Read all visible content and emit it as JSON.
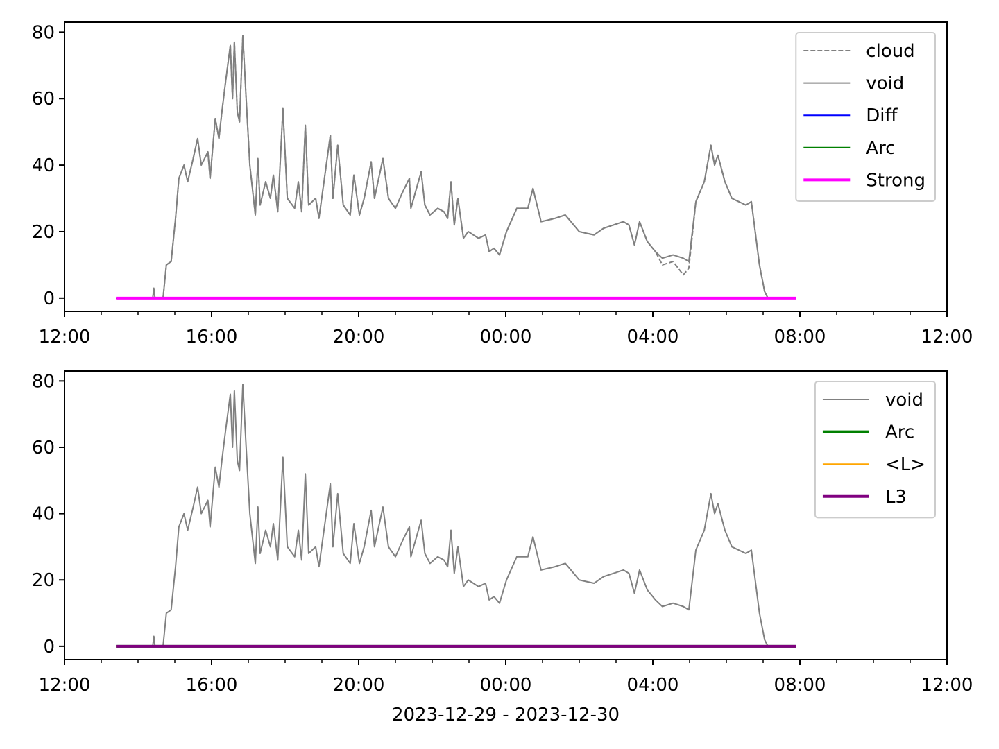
{
  "chart_data": [
    {
      "type": "line",
      "xlim": [
        12,
        36
      ],
      "ylim": [
        -4,
        83
      ],
      "xticks": [
        {
          "value": 12,
          "label": "12:00"
        },
        {
          "value": 16,
          "label": "16:00"
        },
        {
          "value": 20,
          "label": "20:00"
        },
        {
          "value": 24,
          "label": "00:00"
        },
        {
          "value": 28,
          "label": "04:00"
        },
        {
          "value": 32,
          "label": "08:00"
        },
        {
          "value": 36,
          "label": "12:00"
        }
      ],
      "xminorticks": [
        13,
        14,
        15,
        17,
        18,
        19,
        21,
        22,
        23,
        25,
        26,
        27,
        29,
        30,
        31,
        33,
        34,
        35
      ],
      "yticks": [
        0,
        20,
        40,
        60,
        80
      ],
      "legend": "upper right",
      "series": [
        {
          "name": "cloud",
          "color": "#808080",
          "linestyle": "dashed",
          "linewidth": 2,
          "x": [
            13.4,
            14.4,
            14.43,
            14.46,
            14.68,
            14.77,
            14.9,
            15.02,
            15.11,
            15.25,
            15.35,
            15.5,
            15.62,
            15.72,
            15.9,
            15.96,
            16.1,
            16.2,
            16.28,
            16.38,
            16.51,
            16.57,
            16.62,
            16.7,
            16.76,
            16.85,
            16.94,
            17.04,
            17.19,
            17.26,
            17.32,
            17.47,
            17.6,
            17.68,
            17.8,
            17.94,
            18.06,
            18.26,
            18.36,
            18.45,
            18.55,
            18.64,
            18.83,
            18.92,
            19.23,
            19.3,
            19.43,
            19.58,
            19.77,
            19.87,
            20.02,
            20.15,
            20.34,
            20.43,
            20.66,
            20.81,
            21.0,
            21.2,
            21.38,
            21.42,
            21.7,
            21.8,
            21.94,
            22.15,
            22.32,
            22.42,
            22.51,
            22.6,
            22.7,
            22.85,
            22.98,
            23.26,
            23.45,
            23.55,
            23.68,
            23.83,
            24.02,
            24.3,
            24.6,
            24.74,
            24.96,
            25.34,
            25.62,
            26.0,
            26.4,
            26.66,
            27.2,
            27.35,
            27.5,
            27.64,
            27.85,
            28.07,
            28.26,
            28.55,
            28.83,
            28.98,
            29.17,
            29.4,
            29.58,
            29.68,
            29.77,
            29.96,
            30.15,
            30.53,
            30.68,
            30.9,
            31.04,
            31.13
          ],
          "values": [
            0,
            0,
            3,
            0,
            0,
            10,
            11,
            24,
            36,
            40,
            35,
            42,
            48,
            40,
            44,
            36,
            54,
            48,
            56,
            65,
            76,
            60,
            77,
            56,
            53,
            79,
            60,
            40,
            25,
            42,
            28,
            35,
            30,
            37,
            26,
            57,
            30,
            27,
            35,
            26,
            52,
            28,
            30,
            24,
            49,
            30,
            46,
            28,
            25,
            37,
            25,
            30,
            41,
            30,
            42,
            30,
            27,
            32,
            36,
            27,
            38,
            28,
            25,
            27,
            26,
            24,
            35,
            22,
            30,
            18,
            20,
            18,
            19,
            14,
            15,
            13,
            20,
            27,
            27,
            33,
            23,
            24,
            25,
            20,
            19,
            21,
            23,
            22,
            16,
            23,
            17,
            14,
            10,
            11,
            7,
            9,
            29,
            35,
            46,
            40,
            43,
            35,
            30,
            28,
            29,
            10,
            2,
            0
          ]
        },
        {
          "name": "void",
          "color": "#808080",
          "linestyle": "solid",
          "linewidth": 2,
          "x": [
            13.4,
            14.4,
            14.43,
            14.46,
            14.68,
            14.77,
            14.9,
            15.02,
            15.11,
            15.25,
            15.35,
            15.5,
            15.62,
            15.72,
            15.9,
            15.96,
            16.1,
            16.2,
            16.28,
            16.38,
            16.51,
            16.57,
            16.62,
            16.7,
            16.76,
            16.85,
            16.94,
            17.04,
            17.19,
            17.26,
            17.32,
            17.47,
            17.6,
            17.68,
            17.8,
            17.94,
            18.06,
            18.26,
            18.36,
            18.45,
            18.55,
            18.64,
            18.83,
            18.92,
            19.23,
            19.3,
            19.43,
            19.58,
            19.77,
            19.87,
            20.02,
            20.15,
            20.34,
            20.43,
            20.66,
            20.81,
            21.0,
            21.2,
            21.38,
            21.42,
            21.7,
            21.8,
            21.94,
            22.15,
            22.32,
            22.42,
            22.51,
            22.6,
            22.7,
            22.85,
            22.98,
            23.26,
            23.45,
            23.55,
            23.68,
            23.83,
            24.02,
            24.3,
            24.6,
            24.74,
            24.96,
            25.34,
            25.62,
            26.0,
            26.4,
            26.66,
            27.2,
            27.35,
            27.5,
            27.64,
            27.85,
            28.07,
            28.26,
            28.55,
            28.83,
            28.98,
            29.17,
            29.4,
            29.58,
            29.68,
            29.77,
            29.96,
            30.15,
            30.53,
            30.68,
            30.9,
            31.04,
            31.13
          ],
          "values": [
            0,
            0,
            3,
            0,
            0,
            10,
            11,
            24,
            36,
            40,
            35,
            42,
            48,
            40,
            44,
            36,
            54,
            48,
            56,
            65,
            76,
            60,
            77,
            56,
            53,
            79,
            60,
            40,
            25,
            42,
            28,
            35,
            30,
            37,
            26,
            57,
            30,
            27,
            35,
            26,
            52,
            28,
            30,
            24,
            49,
            30,
            46,
            28,
            25,
            37,
            25,
            30,
            41,
            30,
            42,
            30,
            27,
            32,
            36,
            27,
            38,
            28,
            25,
            27,
            26,
            24,
            35,
            22,
            30,
            18,
            20,
            18,
            19,
            14,
            15,
            13,
            20,
            27,
            27,
            33,
            23,
            24,
            25,
            20,
            19,
            21,
            23,
            22,
            16,
            23,
            17,
            14,
            12,
            13,
            12,
            11,
            29,
            35,
            46,
            40,
            43,
            35,
            30,
            28,
            29,
            10,
            2,
            0
          ]
        },
        {
          "name": "Diff",
          "color": "#0000ff",
          "linestyle": "solid",
          "linewidth": 2,
          "x": [
            13.4,
            31.9
          ],
          "values": [
            0,
            0
          ]
        },
        {
          "name": "Arc",
          "color": "#008000",
          "linestyle": "solid",
          "linewidth": 2,
          "x": [
            13.4,
            31.9
          ],
          "values": [
            0,
            0
          ]
        },
        {
          "name": "Strong",
          "color": "#ff00ff",
          "linestyle": "solid",
          "linewidth": 4,
          "x": [
            13.4,
            31.9
          ],
          "values": [
            0,
            0
          ]
        }
      ]
    },
    {
      "type": "line",
      "xlabel": "2023-12-29 - 2023-12-30",
      "xlim": [
        12,
        36
      ],
      "ylim": [
        -4,
        83
      ],
      "xticks": [
        {
          "value": 12,
          "label": "12:00"
        },
        {
          "value": 16,
          "label": "16:00"
        },
        {
          "value": 20,
          "label": "20:00"
        },
        {
          "value": 24,
          "label": "00:00"
        },
        {
          "value": 28,
          "label": "04:00"
        },
        {
          "value": 32,
          "label": "08:00"
        },
        {
          "value": 36,
          "label": "12:00"
        }
      ],
      "xminorticks": [
        13,
        14,
        15,
        17,
        18,
        19,
        21,
        22,
        23,
        25,
        26,
        27,
        29,
        30,
        31,
        33,
        34,
        35
      ],
      "yticks": [
        0,
        20,
        40,
        60,
        80
      ],
      "legend": "upper right",
      "series": [
        {
          "name": "void",
          "color": "#808080",
          "linestyle": "solid",
          "linewidth": 2,
          "x": [
            13.4,
            14.4,
            14.43,
            14.46,
            14.68,
            14.77,
            14.9,
            15.02,
            15.11,
            15.25,
            15.35,
            15.5,
            15.62,
            15.72,
            15.9,
            15.96,
            16.1,
            16.2,
            16.28,
            16.38,
            16.51,
            16.57,
            16.62,
            16.7,
            16.76,
            16.85,
            16.94,
            17.04,
            17.19,
            17.26,
            17.32,
            17.47,
            17.6,
            17.68,
            17.8,
            17.94,
            18.06,
            18.26,
            18.36,
            18.45,
            18.55,
            18.64,
            18.83,
            18.92,
            19.23,
            19.3,
            19.43,
            19.58,
            19.77,
            19.87,
            20.02,
            20.15,
            20.34,
            20.43,
            20.66,
            20.81,
            21.0,
            21.2,
            21.38,
            21.42,
            21.7,
            21.8,
            21.94,
            22.15,
            22.32,
            22.42,
            22.51,
            22.6,
            22.7,
            22.85,
            22.98,
            23.26,
            23.45,
            23.55,
            23.68,
            23.83,
            24.02,
            24.3,
            24.6,
            24.74,
            24.96,
            25.34,
            25.62,
            26.0,
            26.4,
            26.66,
            27.2,
            27.35,
            27.5,
            27.64,
            27.85,
            28.07,
            28.26,
            28.55,
            28.83,
            28.98,
            29.17,
            29.4,
            29.58,
            29.68,
            29.77,
            29.96,
            30.15,
            30.53,
            30.68,
            30.9,
            31.04,
            31.13
          ],
          "values": [
            0,
            0,
            3,
            0,
            0,
            10,
            11,
            24,
            36,
            40,
            35,
            42,
            48,
            40,
            44,
            36,
            54,
            48,
            56,
            65,
            76,
            60,
            77,
            56,
            53,
            79,
            60,
            40,
            25,
            42,
            28,
            35,
            30,
            37,
            26,
            57,
            30,
            27,
            35,
            26,
            52,
            28,
            30,
            24,
            49,
            30,
            46,
            28,
            25,
            37,
            25,
            30,
            41,
            30,
            42,
            30,
            27,
            32,
            36,
            27,
            38,
            28,
            25,
            27,
            26,
            24,
            35,
            22,
            30,
            18,
            20,
            18,
            19,
            14,
            15,
            13,
            20,
            27,
            27,
            33,
            23,
            24,
            25,
            20,
            19,
            21,
            23,
            22,
            16,
            23,
            17,
            14,
            12,
            13,
            12,
            11,
            29,
            35,
            46,
            40,
            43,
            35,
            30,
            28,
            29,
            10,
            2,
            0
          ]
        },
        {
          "name": "Arc",
          "color": "#008000",
          "linestyle": "solid",
          "linewidth": 4,
          "x": [
            13.4,
            31.9
          ],
          "values": [
            0,
            0
          ]
        },
        {
          "name": "<L>",
          "color": "#ffa500",
          "linestyle": "solid",
          "linewidth": 2,
          "x": [
            13.4,
            31.9
          ],
          "values": [
            0,
            0
          ]
        },
        {
          "name": "L3",
          "color": "#800080",
          "linestyle": "solid",
          "linewidth": 4,
          "x": [
            13.4,
            31.9
          ],
          "values": [
            0,
            0
          ]
        }
      ]
    }
  ]
}
